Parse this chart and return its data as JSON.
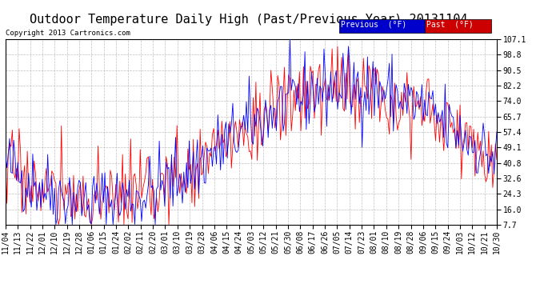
{
  "title": "Outdoor Temperature Daily High (Past/Previous Year) 20131104",
  "copyright": "Copyright 2013 Cartronics.com",
  "legend_prev_label": "Previous  (°F)",
  "legend_past_label": "Past  (°F)",
  "legend_prev_color": "#0000ff",
  "legend_past_color": "#ff0000",
  "legend_prev_bg": "#0000cc",
  "legend_past_bg": "#cc0000",
  "yticks": [
    7.7,
    16.0,
    24.3,
    32.6,
    40.8,
    49.1,
    57.4,
    65.7,
    74.0,
    82.2,
    90.5,
    98.8,
    107.1
  ],
  "ylim": [
    7.7,
    107.1
  ],
  "background_color": "#ffffff",
  "plot_bg_color": "#ffffff",
  "grid_color": "#b0b0b0",
  "title_fontsize": 11,
  "tick_fontsize": 7,
  "num_days": 362,
  "xtick_labels": [
    "11/04",
    "11/13",
    "11/22",
    "12/01",
    "12/10",
    "12/19",
    "12/28",
    "01/06",
    "01/15",
    "01/24",
    "02/02",
    "02/11",
    "02/20",
    "03/01",
    "03/10",
    "03/19",
    "03/28",
    "04/06",
    "04/15",
    "04/24",
    "05/03",
    "05/12",
    "05/21",
    "05/30",
    "06/08",
    "06/17",
    "06/26",
    "07/05",
    "07/14",
    "07/23",
    "08/01",
    "08/10",
    "08/19",
    "08/28",
    "09/06",
    "09/15",
    "09/24",
    "10/03",
    "10/12",
    "10/21",
    "10/30"
  ]
}
